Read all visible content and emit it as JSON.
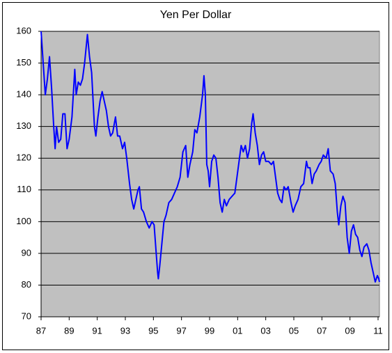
{
  "chart_data": {
    "type": "line",
    "title": "Yen Per Dollar",
    "color": "#0000ff",
    "grid": true,
    "x": [
      1987.0,
      1987.15,
      1987.3,
      1987.45,
      1987.6,
      1987.75,
      1987.9,
      1988.0,
      1988.1,
      1988.25,
      1988.4,
      1988.55,
      1988.7,
      1988.85,
      1989.0,
      1989.2,
      1989.4,
      1989.5,
      1989.65,
      1989.8,
      1989.95,
      1990.1,
      1990.3,
      1990.45,
      1990.6,
      1990.8,
      1990.9,
      1991.05,
      1991.2,
      1991.35,
      1991.5,
      1991.65,
      1991.8,
      1991.95,
      1992.1,
      1992.3,
      1992.45,
      1992.6,
      1992.8,
      1992.95,
      1993.1,
      1993.3,
      1993.45,
      1993.6,
      1993.75,
      1993.9,
      1994.0,
      1994.15,
      1994.3,
      1994.5,
      1994.7,
      1994.9,
      1995.05,
      1995.2,
      1995.3,
      1995.35,
      1995.45,
      1995.6,
      1995.75,
      1995.9,
      1996.1,
      1996.3,
      1996.5,
      1996.7,
      1996.9,
      1997.1,
      1997.3,
      1997.45,
      1997.6,
      1997.8,
      1997.95,
      1998.1,
      1998.3,
      1998.5,
      1998.6,
      1998.7,
      1998.8,
      1998.9,
      1999.0,
      1999.15,
      1999.3,
      1999.45,
      1999.6,
      1999.75,
      1999.9,
      2000.05,
      2000.2,
      2000.4,
      2000.6,
      2000.8,
      2000.95,
      2001.1,
      2001.25,
      2001.4,
      2001.55,
      2001.7,
      2001.85,
      2002.0,
      2002.1,
      2002.25,
      2002.4,
      2002.55,
      2002.7,
      2002.85,
      2003.0,
      2003.2,
      2003.4,
      2003.55,
      2003.7,
      2003.85,
      2004.0,
      2004.15,
      2004.3,
      2004.45,
      2004.6,
      2004.8,
      2004.95,
      2005.1,
      2005.3,
      2005.5,
      2005.7,
      2005.9,
      2006.0,
      2006.15,
      2006.3,
      2006.45,
      2006.6,
      2006.8,
      2006.95,
      2007.1,
      2007.3,
      2007.45,
      2007.6,
      2007.8,
      2007.95,
      2008.1,
      2008.2,
      2008.35,
      2008.5,
      2008.65,
      2008.8,
      2008.95,
      2009.1,
      2009.25,
      2009.4,
      2009.55,
      2009.7,
      2009.85,
      2010.0,
      2010.2,
      2010.35,
      2010.5,
      2010.65,
      2010.8,
      2010.95,
      2011.05,
      2011.1
    ],
    "values": [
      160,
      150,
      140,
      145,
      152,
      142,
      130,
      123,
      130,
      125,
      126,
      134,
      134,
      123,
      126,
      133,
      148,
      140,
      144,
      143,
      145,
      150,
      159,
      152,
      147,
      130,
      127,
      133,
      138,
      141,
      138,
      135,
      130,
      127,
      128,
      133,
      127,
      127,
      123,
      125,
      120,
      112,
      107,
      104,
      107,
      110,
      111,
      104,
      103,
      100,
      98,
      100,
      99,
      90,
      84,
      82,
      86,
      93,
      100,
      102,
      106,
      107,
      109,
      111,
      114,
      122,
      124,
      114,
      118,
      122,
      129,
      128,
      133,
      140,
      146,
      140,
      118,
      116,
      111,
      119,
      121,
      120,
      114,
      106,
      103,
      107,
      105,
      107,
      108,
      109,
      114,
      119,
      124,
      122,
      124,
      120,
      123,
      131,
      134,
      128,
      124,
      118,
      121,
      122,
      119,
      119,
      118,
      119,
      114,
      109,
      107,
      106,
      111,
      110,
      111,
      106,
      103,
      105,
      107,
      111,
      112,
      119,
      117,
      117,
      112,
      115,
      116,
      118,
      119,
      121,
      120,
      123,
      116,
      115,
      112,
      103,
      99,
      105,
      108,
      106,
      95,
      90,
      97,
      99,
      96,
      95,
      91,
      89,
      92,
      93,
      91,
      87,
      84,
      81,
      83,
      82,
      81
    ],
    "xlim": [
      1987,
      2011.1
    ],
    "xticks": [
      {
        "value": 1987,
        "label": "87"
      },
      {
        "value": 1989,
        "label": "89"
      },
      {
        "value": 1991,
        "label": "91"
      },
      {
        "value": 1993,
        "label": "93"
      },
      {
        "value": 1995,
        "label": "95"
      },
      {
        "value": 1997,
        "label": "97"
      },
      {
        "value": 1999,
        "label": "99"
      },
      {
        "value": 2001,
        "label": "01"
      },
      {
        "value": 2003,
        "label": "03"
      },
      {
        "value": 2005,
        "label": "05"
      },
      {
        "value": 2007,
        "label": "07"
      },
      {
        "value": 2009,
        "label": "09"
      },
      {
        "value": 2011,
        "label": "11"
      }
    ],
    "ylim": [
      70,
      160
    ],
    "yticks": [
      70,
      80,
      90,
      100,
      110,
      120,
      130,
      140,
      150,
      160
    ]
  }
}
